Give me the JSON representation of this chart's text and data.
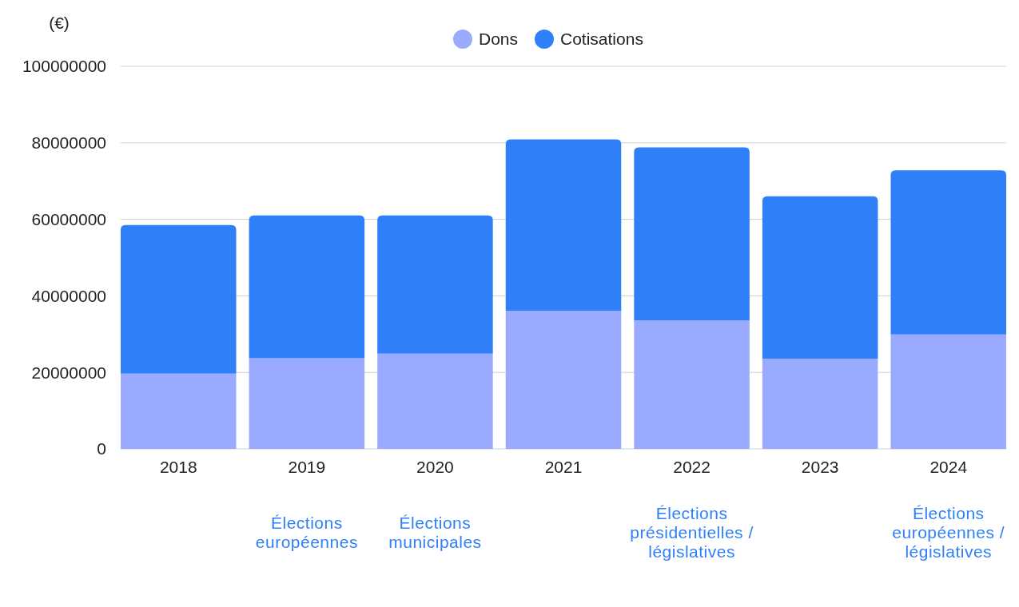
{
  "chart_data": {
    "type": "bar",
    "stacked": true,
    "ylabel": "(€)",
    "categories": [
      "2018",
      "2019",
      "2020",
      "2021",
      "2022",
      "2023",
      "2024"
    ],
    "series": [
      {
        "name": "Dons",
        "color": "#9aabff",
        "values": [
          19700000,
          23700000,
          24900000,
          36100000,
          33600000,
          23600000,
          29900000
        ]
      },
      {
        "name": "Cotisations",
        "color": "#2f80f8",
        "values": [
          38800000,
          37300000,
          36100000,
          44800000,
          45200000,
          42400000,
          42900000
        ]
      }
    ],
    "ylim": [
      0,
      100000000
    ],
    "yticks": [
      0,
      20000000,
      40000000,
      60000000,
      80000000,
      100000000
    ],
    "grid": "y",
    "legend": "top",
    "annotations": [
      "Élections européennes",
      "Élections municipales",
      "Élections présidentielles / législatives",
      "Élections européennes / législatives"
    ]
  }
}
